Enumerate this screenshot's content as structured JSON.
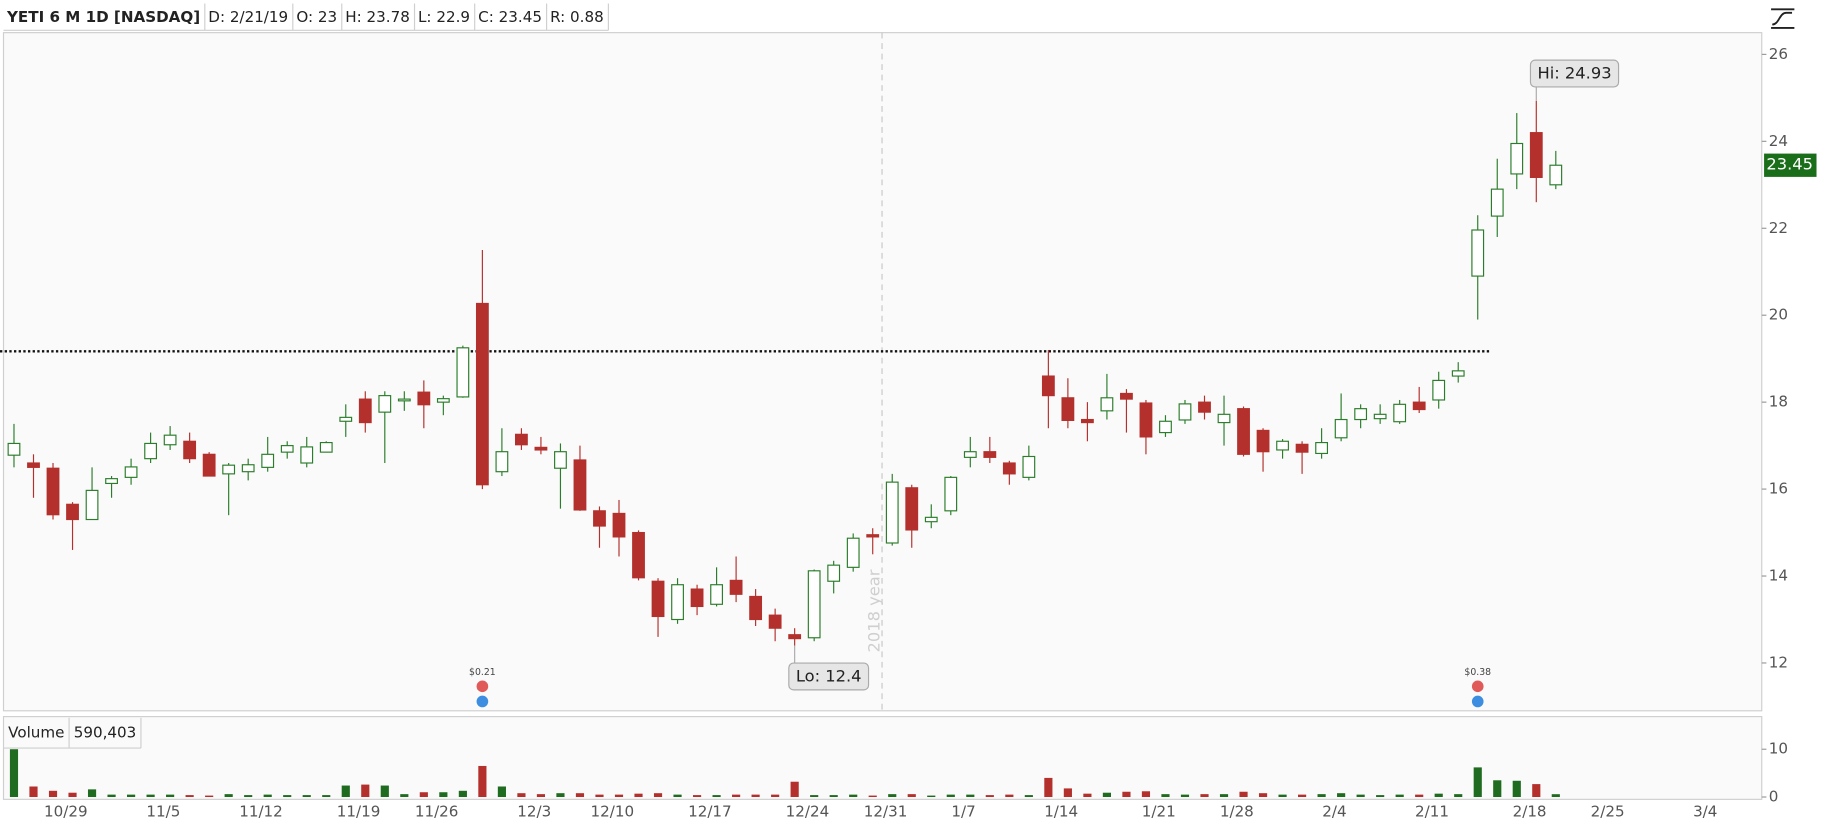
{
  "chart_data": {
    "type": "candlestick",
    "header": [
      "YETI 6 M 1D [NASDAQ]",
      "D: 2/21/19",
      "O: 23",
      "H: 23.78",
      "L: 22.9",
      "C: 23.45",
      "R: 0.88"
    ],
    "categories": [
      null,
      null,
      "10/29",
      null,
      null,
      null,
      null,
      "11/5",
      null,
      null,
      null,
      null,
      "11/12",
      null,
      null,
      null,
      null,
      "11/19",
      null,
      null,
      null,
      "11/26",
      null,
      null,
      null,
      null,
      "12/3",
      null,
      null,
      null,
      "12/10",
      null,
      null,
      null,
      null,
      "12/17",
      null,
      null,
      null,
      null,
      "12/24",
      null,
      null,
      null,
      "12/31",
      null,
      null,
      null,
      "1/7",
      null,
      null,
      null,
      null,
      "1/14",
      null,
      null,
      null,
      null,
      "1/21",
      null,
      null,
      null,
      "1/28",
      null,
      null,
      null,
      null,
      "2/4",
      null,
      null,
      null,
      null,
      "2/11",
      null,
      null,
      null,
      null,
      "2/18",
      null,
      null,
      null,
      "2/25",
      null,
      null,
      null,
      null,
      "3/4"
    ],
    "open": [
      16.78,
      16.6,
      16.48,
      15.65,
      15.3,
      16.13,
      16.27,
      16.7,
      17.02,
      17.1,
      16.8,
      16.35,
      16.4,
      16.5,
      16.85,
      16.6,
      16.85,
      17.56,
      18.07,
      17.77,
      18.05,
      18.23,
      18.0,
      18.12,
      20.27,
      16.4,
      17.26,
      16.96,
      16.48,
      16.67,
      15.5,
      15.44,
      15.0,
      13.88,
      13.0,
      13.7,
      13.35,
      13.9,
      13.53,
      13.1,
      12.65,
      12.58,
      13.88,
      14.2,
      14.95,
      14.76,
      16.03,
      15.25,
      15.5,
      16.73,
      16.86,
      16.6,
      16.27,
      18.6,
      18.1,
      17.6,
      17.8,
      18.2,
      17.98,
      17.3,
      17.59,
      18.0,
      17.53,
      17.85,
      17.35,
      16.9,
      17.03,
      16.82,
      17.18,
      17.6,
      17.62,
      17.55,
      18.0,
      18.05,
      18.6,
      20.9,
      22.28,
      23.25,
      24.2,
      23.0,
      null,
      null,
      null,
      null,
      null,
      null,
      null
    ],
    "high": [
      17.5,
      16.8,
      16.6,
      15.7,
      16.5,
      16.3,
      16.7,
      17.3,
      17.45,
      17.3,
      16.85,
      16.6,
      16.7,
      17.2,
      17.1,
      17.2,
      17.1,
      17.95,
      18.25,
      18.25,
      18.25,
      18.5,
      18.15,
      19.3,
      21.5,
      17.4,
      17.4,
      17.2,
      17.05,
      17.0,
      15.6,
      15.75,
      15.05,
      13.95,
      13.95,
      13.8,
      14.2,
      14.45,
      13.7,
      13.25,
      12.8,
      14.15,
      14.35,
      14.98,
      15.1,
      16.35,
      16.1,
      15.65,
      16.3,
      17.2,
      17.2,
      16.65,
      17.0,
      19.2,
      18.55,
      18.0,
      18.65,
      18.3,
      18.05,
      17.7,
      18.05,
      18.15,
      18.15,
      17.9,
      17.4,
      17.15,
      17.1,
      17.4,
      18.2,
      17.95,
      17.95,
      18.05,
      18.35,
      18.7,
      18.92,
      22.3,
      23.6,
      24.65,
      24.93,
      23.78,
      null,
      null,
      null,
      null,
      null,
      null,
      null
    ],
    "low": [
      16.5,
      15.8,
      15.3,
      14.6,
      15.3,
      15.8,
      16.1,
      16.6,
      16.9,
      16.6,
      16.3,
      15.4,
      16.2,
      16.4,
      16.7,
      16.5,
      16.85,
      17.2,
      17.3,
      16.6,
      17.8,
      17.4,
      17.7,
      18.1,
      16.0,
      16.3,
      16.9,
      16.8,
      15.55,
      15.5,
      14.65,
      14.45,
      13.9,
      12.6,
      12.9,
      13.1,
      13.3,
      13.4,
      12.85,
      12.5,
      12.4,
      12.5,
      13.6,
      14.1,
      14.5,
      14.7,
      14.65,
      15.1,
      15.4,
      16.5,
      16.6,
      16.1,
      16.2,
      17.4,
      17.4,
      17.1,
      17.6,
      17.3,
      16.8,
      17.2,
      17.5,
      17.6,
      17.0,
      16.75,
      16.4,
      16.7,
      16.35,
      16.7,
      17.1,
      17.4,
      17.5,
      17.5,
      17.75,
      17.85,
      18.45,
      19.9,
      21.8,
      22.9,
      22.6,
      22.9,
      null,
      null,
      null,
      null,
      null,
      null,
      null
    ],
    "close": [
      17.05,
      16.5,
      15.41,
      15.3,
      15.97,
      16.24,
      16.51,
      17.05,
      17.24,
      16.7,
      16.3,
      16.55,
      16.56,
      16.8,
      17.0,
      16.97,
      17.07,
      17.65,
      17.53,
      18.15,
      18.07,
      17.94,
      18.08,
      19.25,
      16.1,
      16.86,
      17.02,
      16.9,
      16.86,
      15.52,
      15.15,
      14.9,
      13.96,
      13.07,
      13.8,
      13.3,
      13.8,
      13.58,
      13.0,
      12.8,
      12.56,
      14.12,
      14.25,
      14.87,
      14.9,
      16.16,
      15.06,
      15.35,
      16.27,
      16.86,
      16.73,
      16.35,
      16.75,
      18.15,
      17.58,
      17.53,
      18.1,
      18.07,
      17.2,
      17.56,
      17.96,
      17.77,
      17.72,
      16.8,
      16.86,
      17.1,
      16.85,
      17.07,
      17.6,
      17.85,
      17.72,
      17.95,
      17.83,
      18.5,
      18.72,
      21.96,
      22.9,
      23.95,
      23.17,
      23.45,
      null,
      null,
      null,
      null,
      null,
      null,
      null
    ],
    "volume": [
      10.0,
      2.2,
      1.3,
      0.9,
      1.6,
      0.5,
      0.5,
      0.5,
      0.5,
      0.4,
      0.3,
      0.6,
      0.4,
      0.5,
      0.4,
      0.4,
      0.4,
      2.4,
      2.6,
      2.4,
      0.6,
      1.0,
      1.0,
      1.3,
      6.5,
      2.2,
      0.8,
      0.6,
      0.8,
      0.8,
      0.5,
      0.5,
      0.7,
      0.8,
      0.5,
      0.4,
      0.4,
      0.5,
      0.5,
      0.5,
      3.2,
      0.4,
      0.4,
      0.5,
      0.3,
      0.6,
      0.6,
      0.3,
      0.5,
      0.5,
      0.4,
      0.5,
      0.4,
      4.0,
      1.8,
      0.7,
      0.9,
      1.1,
      1.2,
      0.6,
      0.5,
      0.6,
      0.6,
      1.1,
      0.8,
      0.5,
      0.5,
      0.6,
      0.8,
      0.5,
      0.4,
      0.5,
      0.5,
      0.7,
      0.6,
      6.2,
      3.5,
      3.4,
      2.7,
      0.590403,
      null,
      null,
      null,
      null,
      null,
      null,
      null
    ],
    "event_labels": [
      null,
      null,
      null,
      null,
      null,
      null,
      null,
      null,
      null,
      null,
      null,
      null,
      null,
      null,
      null,
      null,
      null,
      null,
      null,
      null,
      null,
      null,
      null,
      null,
      "$0.21",
      null,
      null,
      null,
      null,
      null,
      null,
      null,
      null,
      null,
      null,
      null,
      null,
      null,
      null,
      null,
      null,
      null,
      null,
      null,
      null,
      null,
      null,
      null,
      null,
      null,
      null,
      null,
      null,
      null,
      null,
      null,
      null,
      null,
      null,
      null,
      null,
      null,
      null,
      null,
      null,
      null,
      null,
      null,
      null,
      null,
      null,
      null,
      null,
      null,
      null,
      "$0.38",
      null,
      null,
      null,
      null,
      null,
      null,
      null,
      null,
      null,
      null,
      null
    ],
    "up_color": "#2b7d2b",
    "down_color": "#b3302c",
    "volume_up_color": "#1f6b1f",
    "volume_down_color": "#b3302c",
    "ylim": [
      10.9,
      26.5
    ],
    "yticks": [
      12,
      14,
      16,
      18,
      20,
      22,
      24,
      26
    ],
    "volume_header": [
      "Volume",
      "590,403"
    ],
    "volume_ylim": [
      0,
      10
    ],
    "volume_yticks": [
      0,
      10
    ],
    "level_line": 19.17,
    "annotations": {
      "high": "Hi: 24.93",
      "low": "Lo: 12.4"
    },
    "year_label": "2018 year"
  }
}
